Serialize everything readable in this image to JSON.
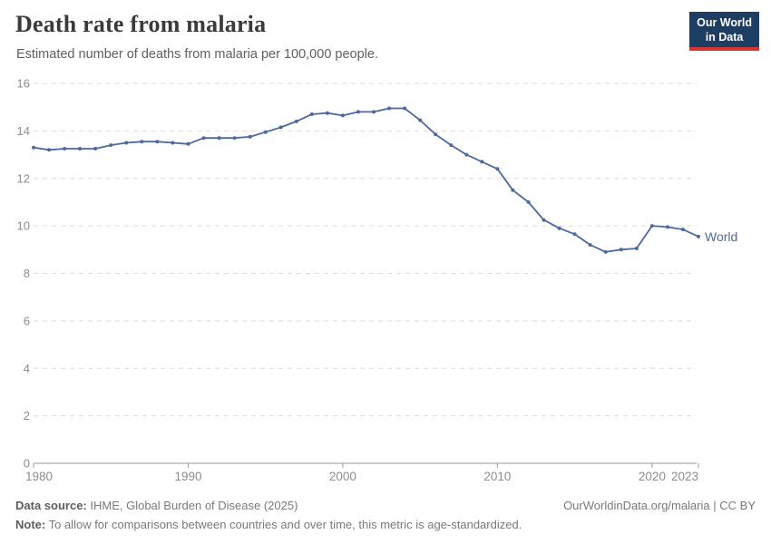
{
  "header": {
    "title": "Death rate from malaria",
    "subtitle": "Estimated number of deaths from malaria per 100,000 people.",
    "logo": {
      "line1": "Our World",
      "line2": "in Data"
    }
  },
  "colors": {
    "line": "#4c6a9c",
    "logo_bg": "#1d3d63",
    "logo_bar": "#d83731",
    "grid": "#dcdcdc",
    "axis_text": "#8d8d8d"
  },
  "chart_data": {
    "type": "line",
    "title": "Death rate from malaria",
    "subtitle": "Estimated number of deaths from malaria per 100,000 people.",
    "xlabel": "",
    "ylabel": "",
    "xlim": [
      1980,
      2023
    ],
    "ylim": [
      0,
      16
    ],
    "x_ticks": [
      1980,
      1990,
      2000,
      2010,
      2020,
      2023
    ],
    "y_ticks": [
      0,
      2,
      4,
      6,
      8,
      10,
      12,
      14,
      16
    ],
    "grid": "horizontal-dashed",
    "legend_position": "end-of-line-label",
    "series": [
      {
        "name": "World",
        "x": [
          1980,
          1981,
          1982,
          1983,
          1984,
          1985,
          1986,
          1987,
          1988,
          1989,
          1990,
          1991,
          1992,
          1993,
          1994,
          1995,
          1996,
          1997,
          1998,
          1999,
          2000,
          2001,
          2002,
          2003,
          2004,
          2005,
          2006,
          2007,
          2008,
          2009,
          2010,
          2011,
          2012,
          2013,
          2014,
          2015,
          2016,
          2017,
          2018,
          2019,
          2020,
          2021,
          2022,
          2023
        ],
        "values": [
          13.3,
          13.2,
          13.25,
          13.25,
          13.25,
          13.4,
          13.5,
          13.55,
          13.55,
          13.5,
          13.45,
          13.7,
          13.7,
          13.7,
          13.75,
          13.95,
          14.15,
          14.4,
          14.7,
          14.75,
          14.65,
          14.8,
          14.8,
          14.95,
          14.95,
          14.45,
          13.85,
          13.4,
          13.0,
          12.7,
          12.4,
          11.5,
          11.0,
          10.25,
          9.9,
          9.65,
          9.2,
          8.9,
          9.0,
          9.05,
          10.0,
          9.95,
          9.85,
          9.55
        ]
      }
    ]
  },
  "footer": {
    "datasource_label": "Data source:",
    "datasource": "IHME, Global Burden of Disease (2025)",
    "note_label": "Note:",
    "note": "To allow for comparisons between countries and over time, this metric is age-standardized.",
    "link": "OurWorldinData.org/malaria | CC BY"
  }
}
